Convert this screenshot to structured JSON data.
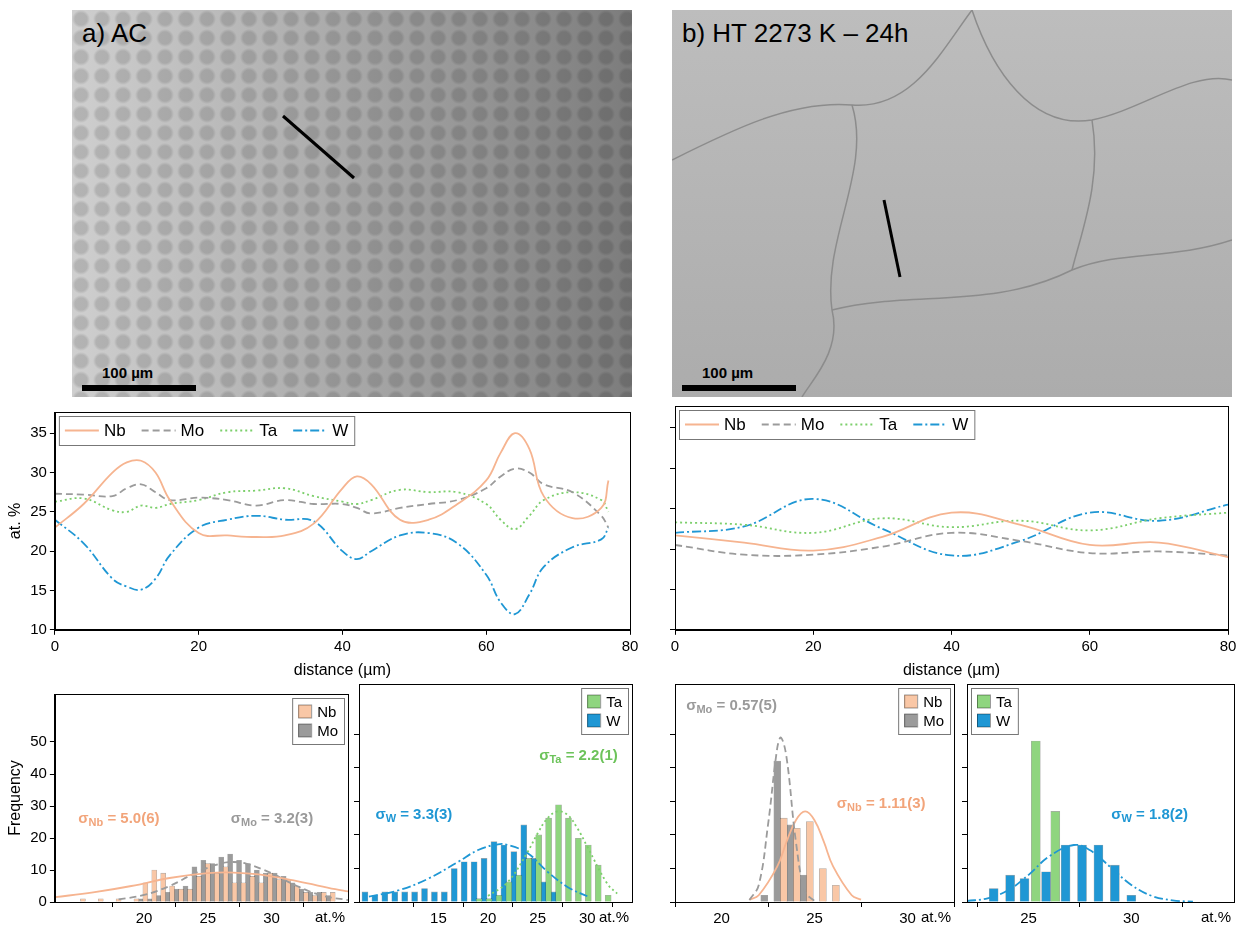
{
  "images": [
    {
      "label": "a) AC",
      "scale_bar": "100 µm"
    },
    {
      "label": "b) HT 2273 K – 24h",
      "scale_bar": "100 µm"
    }
  ],
  "chart_data": [
    {
      "type": "line",
      "x_label": "distance (µm)",
      "y_label": "at. %",
      "x": [
        0,
        4,
        8,
        10,
        12,
        14,
        16,
        20,
        24,
        28,
        32,
        36,
        40,
        42,
        44,
        48,
        52,
        56,
        60,
        62,
        64,
        66,
        68,
        72,
        76,
        77
      ],
      "series": [
        {
          "name": "Nb",
          "color": "#f6b490",
          "line_style": "solid",
          "values": [
            23,
            26,
            30,
            31.3,
            31.5,
            30,
            26.5,
            22.3,
            22,
            21.8,
            22,
            23.5,
            28,
            29.5,
            28.5,
            24,
            24,
            26,
            29,
            32.5,
            35,
            33,
            27,
            24.2,
            25.5,
            29
          ]
        },
        {
          "name": "Mo",
          "color": "#9b9b9b",
          "line_style": "dashed",
          "values": [
            27.3,
            27.2,
            27,
            28,
            28.5,
            27.5,
            26.5,
            26.8,
            26.5,
            25.8,
            26.5,
            26,
            26,
            25.5,
            24.8,
            25.5,
            26,
            26.5,
            28,
            29.5,
            30.5,
            30,
            28.5,
            27.5,
            24.5,
            23
          ]
        },
        {
          "name": "Ta",
          "color": "#7ccf6b",
          "line_style": "dotted",
          "values": [
            26.3,
            26.7,
            25.2,
            25,
            25.8,
            25.5,
            26,
            26.5,
            27.5,
            27.7,
            28,
            27,
            26.3,
            26,
            26.5,
            27.8,
            27.5,
            27.5,
            26,
            24,
            22.8,
            24.5,
            26.5,
            27.5,
            26.5,
            25
          ]
        },
        {
          "name": "W",
          "color": "#1f97d4",
          "line_style": "dashdot",
          "values": [
            24,
            21,
            16.5,
            15.5,
            15.1,
            16.5,
            19.5,
            23,
            24,
            24.5,
            24,
            23.8,
            20,
            19,
            20,
            22,
            22.3,
            21,
            17,
            13.5,
            12,
            14.5,
            18,
            20.5,
            21.5,
            23
          ]
        }
      ],
      "xlim": [
        0,
        80
      ],
      "xticks": [
        0,
        20,
        40,
        60,
        80
      ],
      "ylim": [
        10,
        37.7
      ],
      "yticks": [
        10,
        15,
        20,
        25,
        30,
        35
      ],
      "legend": "upper left",
      "grid": false
    },
    {
      "type": "line",
      "x_label": "distance (µm)",
      "x": [
        0,
        10,
        20,
        30,
        40,
        50,
        60,
        70,
        80
      ],
      "series": [
        {
          "name": "Nb",
          "color": "#f6b490",
          "line_style": "solid",
          "values": [
            21.7,
            20.8,
            19.8,
            21.5,
            24.5,
            23,
            20.5,
            20.8,
            19
          ]
        },
        {
          "name": "Mo",
          "color": "#9b9b9b",
          "line_style": "dashed",
          "values": [
            20.5,
            19.3,
            19.3,
            20.3,
            22,
            21,
            19.5,
            19.7,
            19.2
          ]
        },
        {
          "name": "Ta",
          "color": "#7ccf6b",
          "line_style": "dotted",
          "values": [
            23.3,
            23,
            22,
            23.8,
            22.7,
            23.5,
            22.3,
            23.8,
            24.5
          ]
        },
        {
          "name": "W",
          "color": "#1f97d4",
          "line_style": "dashdot",
          "values": [
            22,
            22.8,
            26.2,
            22.5,
            19.2,
            21,
            24.5,
            23.5,
            25.5
          ]
        }
      ],
      "xlim": [
        0,
        80
      ],
      "xticks": [
        0,
        20,
        40,
        60,
        80
      ],
      "ylim": [
        10,
        37.7
      ],
      "yticks": [
        10,
        15,
        20,
        25,
        30,
        35
      ],
      "tick_labels": "x",
      "legend": "upper left",
      "grid": false
    },
    {
      "type": "bar",
      "x_label": "at.%",
      "y_label": "Frequency",
      "series": [
        {
          "name": "Nb",
          "color": "#f9c7a6",
          "x": [
            15.2,
            16.6,
            18,
            19.4,
            20.1,
            20.8,
            21.5,
            22.2,
            22.9,
            23.6,
            24.3,
            25,
            25.7,
            26.4,
            27.1,
            27.8,
            28.5,
            29.2,
            29.9,
            30.6,
            31.3,
            32,
            32.7,
            33.4,
            34.1,
            34.8
          ],
          "values": [
            1,
            1,
            1,
            1,
            6,
            10,
            9,
            5,
            4,
            4,
            8,
            12,
            9,
            11,
            6,
            6,
            8,
            6,
            9,
            7,
            7,
            5,
            3,
            2,
            3,
            3
          ]
        },
        {
          "name": "Mo",
          "color": "#9b9b9b",
          "x": [
            19.75,
            20.45,
            21.15,
            21.85,
            22.55,
            23.25,
            23.95,
            24.65,
            25.35,
            26.05,
            26.75,
            27.45,
            28.15,
            28.85,
            29.55,
            30.25,
            30.95,
            31.65,
            32.35,
            33.05,
            33.75,
            34.45
          ],
          "values": [
            1,
            1,
            2,
            3,
            4,
            5,
            11,
            13,
            12,
            14,
            15,
            13,
            12,
            10,
            9,
            9,
            8,
            6,
            4,
            3,
            3,
            2
          ]
        },
        {
          "type": "line",
          "color": "#f6b490",
          "line_style": "solid",
          "x": [
            13,
            16,
            19,
            22,
            25,
            27,
            29,
            32,
            35,
            36
          ],
          "values": [
            1.5,
            3,
            5,
            7.5,
            9,
            9.2,
            8.6,
            6.5,
            4,
            3.3
          ]
        },
        {
          "type": "line",
          "color": "#9b9b9b",
          "line_style": "dashed",
          "x": [
            18,
            20,
            22,
            24,
            26,
            27,
            28,
            30,
            32,
            34,
            36
          ],
          "values": [
            0.8,
            2.2,
            5,
            9,
            12,
            12.5,
            12,
            9,
            5,
            2,
            0.6
          ]
        }
      ],
      "annotations": [
        {
          "text": "σNb = 5.0(6)",
          "color": "#f2a47a"
        },
        {
          "text": "σMo = 3.2(3)",
          "color": "#9a9a9a"
        }
      ],
      "xlim": [
        13,
        36
      ],
      "xticks": [
        20,
        25,
        30
      ],
      "ylim": [
        0,
        65
      ],
      "yticks": [
        0,
        10,
        20,
        30,
        40,
        50
      ],
      "legend": "upper right",
      "grid": false
    },
    {
      "type": "bar",
      "x_label": "at.%",
      "series": [
        {
          "name": "Ta",
          "color": "#8fd57f",
          "x": [
            19.1,
            20.1,
            21.1,
            22.1,
            23.1,
            24.1,
            25.1,
            26.1,
            27.1,
            28.1,
            29.1,
            30.1,
            31.1,
            32.1
          ],
          "values": [
            1,
            1,
            2,
            6,
            8,
            13,
            20,
            25,
            29,
            25,
            19,
            17,
            11,
            2
          ]
        },
        {
          "name": "W",
          "color": "#1f97d4",
          "x": [
            7.6,
            8.6,
            9.6,
            10.6,
            11.6,
            12.6,
            13.6,
            14.6,
            15.6,
            16.6,
            17.6,
            18.6,
            19.6,
            20.6,
            21.6,
            22.6,
            23.6,
            24.6,
            25.6,
            26.6
          ],
          "values": [
            3,
            2,
            3,
            3,
            3,
            3,
            4,
            3,
            3,
            10,
            12,
            12,
            13,
            18,
            17,
            15,
            23,
            13,
            6,
            3
          ]
        },
        {
          "type": "line",
          "color": "#7ccf6b",
          "line_style": "dotted",
          "x": [
            20,
            22,
            24,
            25,
            26,
            27,
            28,
            29,
            30,
            32,
            33
          ],
          "values": [
            1.8,
            6,
            15,
            20.5,
            25,
            27,
            26,
            22,
            16.5,
            5.5,
            2.5
          ]
        },
        {
          "type": "line",
          "color": "#1f97d4",
          "line_style": "dashdot",
          "x": [
            8,
            11,
            14,
            17,
            19,
            21,
            22,
            24,
            26,
            28,
            30
          ],
          "values": [
            1.6,
            3.5,
            7,
            12,
            15.5,
            17.2,
            17,
            14.5,
            9,
            4.5,
            1.7
          ]
        }
      ],
      "annotations": [
        {
          "text": "σW = 3.3(3)",
          "color": "#1f97d4"
        },
        {
          "text": "σTa = 2.2(1)",
          "color": "#6cc35a"
        }
      ],
      "xlim": [
        7,
        34.5
      ],
      "xticks": [
        15,
        20,
        25,
        30
      ],
      "ylim": [
        0,
        65
      ],
      "yticks": [
        0,
        10,
        20,
        30,
        40,
        50
      ],
      "tick_labels": "x",
      "legend": "upper right",
      "grid": false
    },
    {
      "type": "bar",
      "x_label": "at.%",
      "series": [
        {
          "name": "Nb",
          "color": "#f9c7a6",
          "x": [
            23.35,
            24.05,
            24.75,
            25.45,
            26.15
          ],
          "values": [
            25,
            22,
            24,
            10,
            5
          ]
        },
        {
          "name": "Mo",
          "color": "#9b9b9b",
          "x": [
            22.3,
            23,
            23.7,
            24.4
          ],
          "values": [
            2,
            42,
            23,
            8
          ]
        },
        {
          "type": "line",
          "color": "#9b9b9b",
          "line_style": "dashed",
          "x": [
            21.5,
            22,
            22.5,
            23,
            23.2,
            23.5,
            24,
            24.5,
            25
          ],
          "values": [
            0.6,
            5,
            23,
            46,
            49,
            43,
            18,
            3,
            0.3
          ]
        },
        {
          "type": "line",
          "color": "#f6b490",
          "line_style": "solid",
          "x": [
            21.5,
            22,
            23,
            23.5,
            24,
            24.5,
            25,
            25.5,
            26,
            27,
            27.5
          ],
          "values": [
            0.7,
            2,
            10.6,
            18,
            24.4,
            27,
            24.4,
            18,
            10.6,
            2,
            0.7
          ]
        }
      ],
      "annotations": [
        {
          "text": "σMo = 0.57(5)",
          "color": "#9a9a9a"
        },
        {
          "text": "σNb = 1.11(3)",
          "color": "#f2a47a"
        }
      ],
      "xlim": [
        17.5,
        32.5
      ],
      "xticks": [
        20,
        25,
        30
      ],
      "ylim": [
        0,
        65
      ],
      "yticks": [
        0,
        10,
        20,
        30,
        40,
        50
      ],
      "tick_labels": "x",
      "legend": "upper right",
      "grid": false
    },
    {
      "type": "bar",
      "x_label": "at.%",
      "series": [
        {
          "name": "Ta",
          "color": "#8fd57f",
          "x": [
            25.35,
            26.3
          ],
          "values": [
            48,
            27
          ]
        },
        {
          "name": "W",
          "color": "#1f97d4",
          "x": [
            23.3,
            24.1,
            24.8,
            25.85,
            26.8,
            27.6,
            28.4,
            29.2,
            30
          ],
          "values": [
            4,
            8,
            7,
            9,
            17,
            17,
            17,
            11,
            2
          ]
        },
        {
          "type": "line",
          "color": "#1f97d4",
          "line_style": "dashdot",
          "x": [
            22,
            23,
            24,
            25,
            26,
            27.2,
            28,
            29,
            30,
            31,
            32,
            33
          ],
          "values": [
            0.3,
            1.1,
            3.5,
            8.1,
            13.6,
            17,
            15.4,
            10.3,
            5.1,
            1.8,
            0.5,
            0.1
          ]
        }
      ],
      "annotations": [
        {
          "text": "σW = 1.8(2)",
          "color": "#1f97d4"
        }
      ],
      "xlim": [
        22,
        35
      ],
      "xticks": [
        25,
        30
      ],
      "ylim": [
        0,
        65
      ],
      "yticks": [
        0,
        10,
        20,
        30,
        40,
        50
      ],
      "tick_labels": "x",
      "legend": "upper left",
      "grid": false
    }
  ]
}
